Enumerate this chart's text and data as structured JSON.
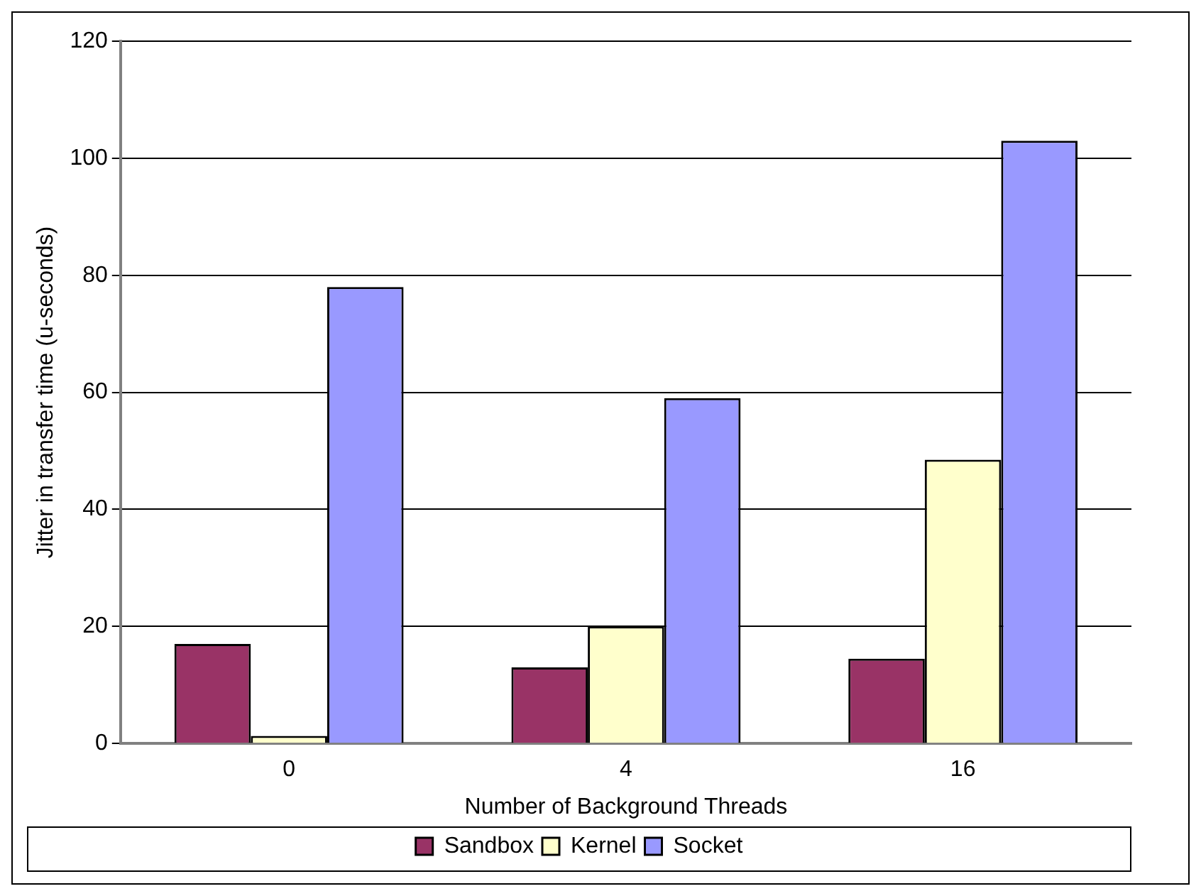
{
  "chart_data": {
    "type": "bar",
    "xlabel": "Number of Background Threads",
    "ylabel": "Jitter in transfer time (u-seconds)",
    "categories": [
      "0",
      "4",
      "16"
    ],
    "series": [
      {
        "name": "Sandbox",
        "color": "#993366",
        "values": [
          17,
          13,
          14.5
        ]
      },
      {
        "name": "Kernel",
        "color": "#ffffcc",
        "values": [
          1.3,
          20,
          48.5
        ]
      },
      {
        "name": "Socket",
        "color": "#9999ff",
        "values": [
          78,
          59,
          103
        ]
      }
    ],
    "ylim": [
      0,
      120
    ],
    "yticks": [
      0,
      20,
      40,
      60,
      80,
      100,
      120
    ],
    "grid": "y",
    "legend": "bottom"
  }
}
